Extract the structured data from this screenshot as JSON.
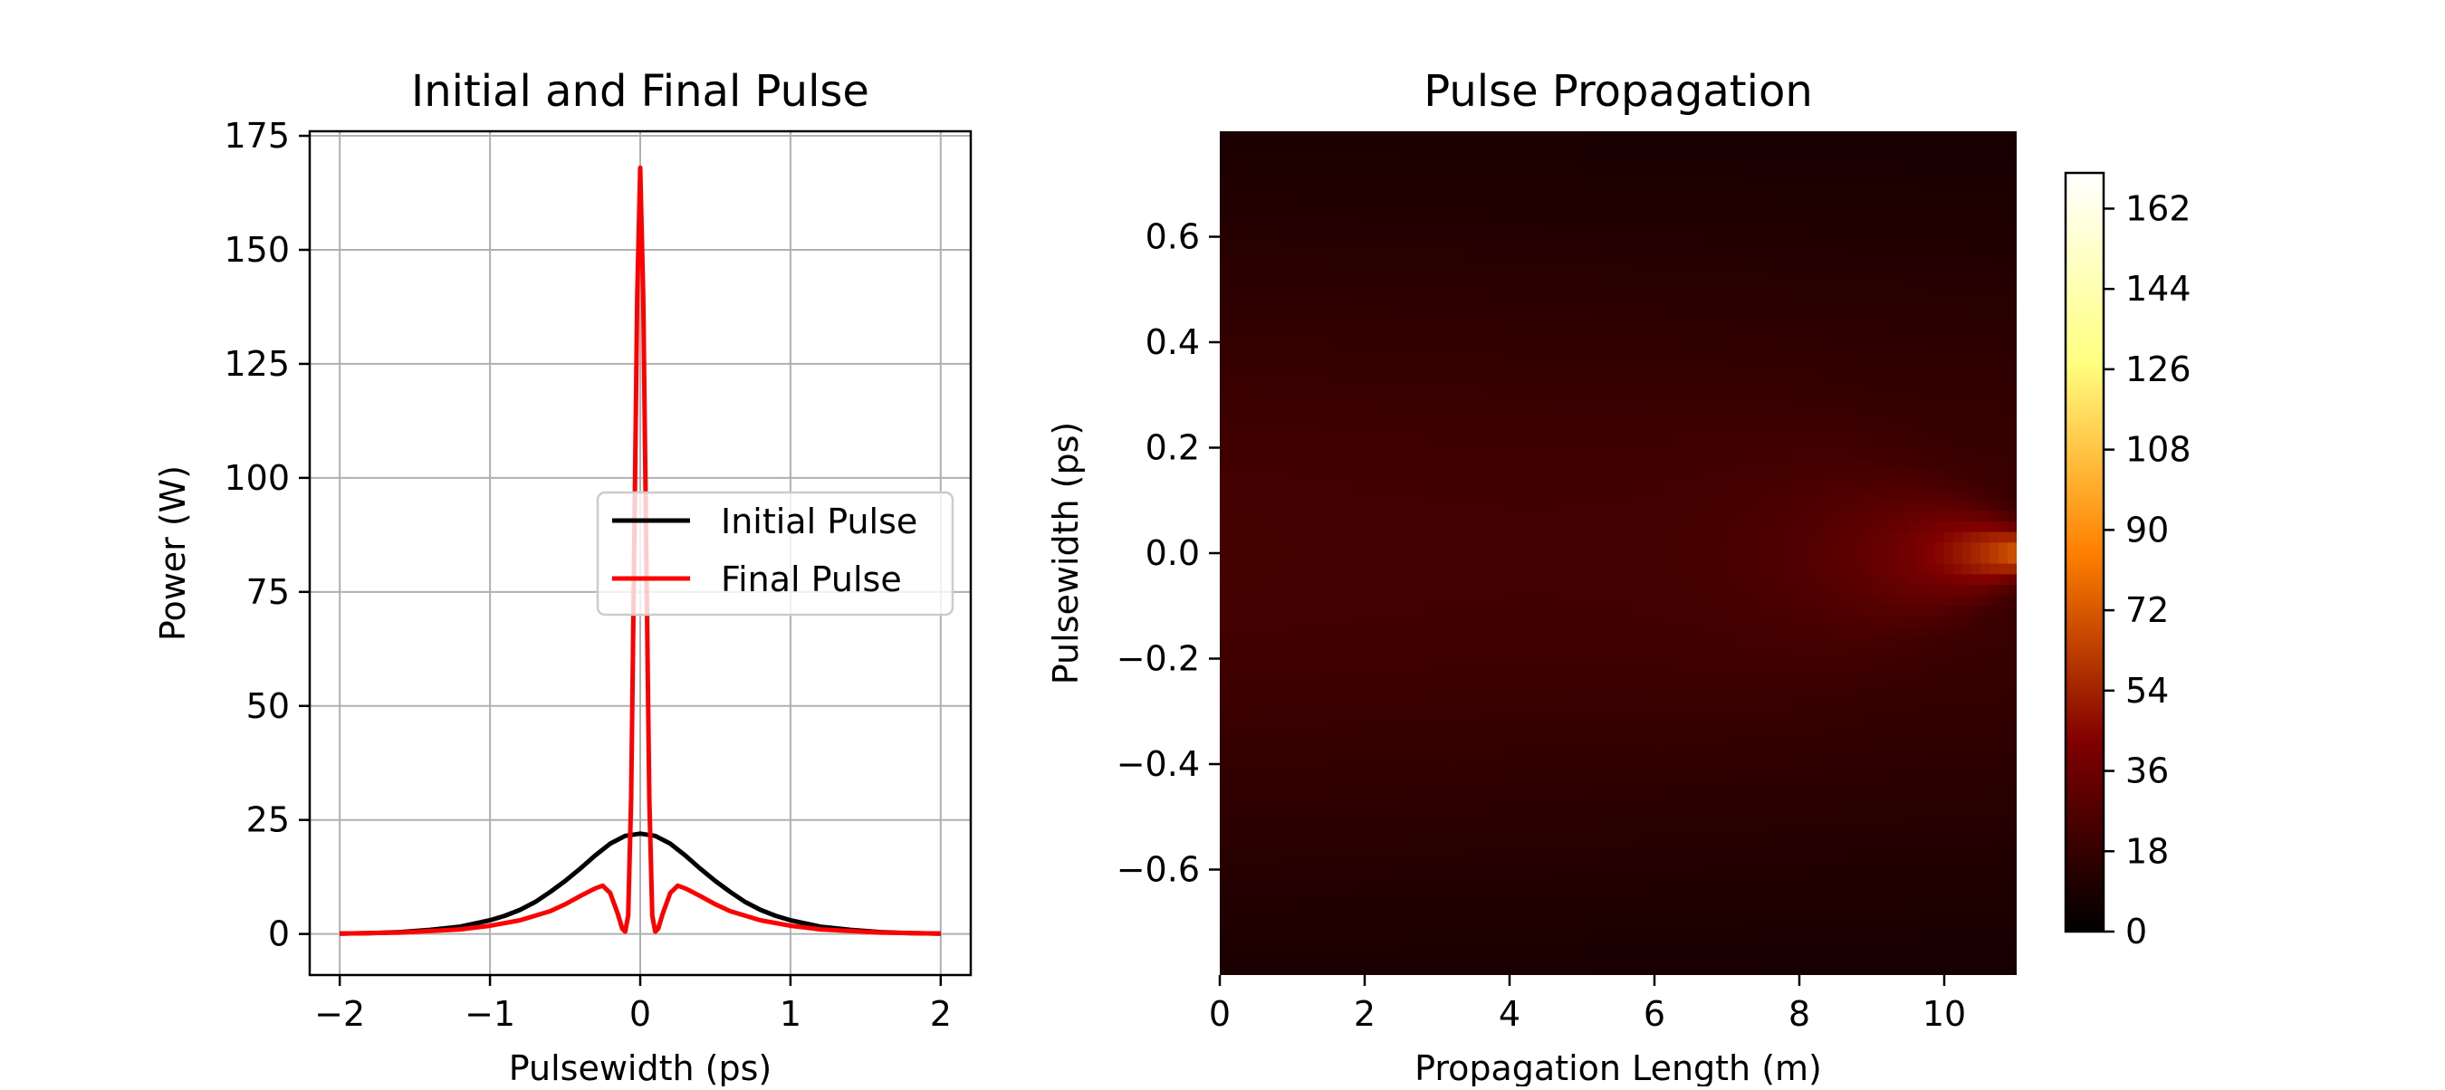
{
  "chart_data": [
    {
      "type": "line",
      "title": "Initial and Final Pulse",
      "xlabel": "Pulsewidth (ps)",
      "ylabel": "Power (W)",
      "xlim": [
        -2.2,
        2.2
      ],
      "ylim": [
        -9,
        176
      ],
      "x_ticks": [
        -2,
        -1,
        0,
        1,
        2
      ],
      "x_tick_labels": [
        "−2",
        "−1",
        "0",
        "1",
        "2"
      ],
      "y_ticks": [
        0,
        25,
        50,
        75,
        100,
        125,
        150,
        175
      ],
      "y_tick_labels": [
        "0",
        "25",
        "50",
        "75",
        "100",
        "125",
        "150",
        "175"
      ],
      "grid": true,
      "legend_position": "center-right",
      "series": [
        {
          "name": "Initial Pulse",
          "color": "#000000",
          "x": [
            -2.0,
            -1.8,
            -1.6,
            -1.4,
            -1.2,
            -1.0,
            -0.9,
            -0.8,
            -0.7,
            -0.6,
            -0.5,
            -0.4,
            -0.3,
            -0.2,
            -0.1,
            0.0,
            0.1,
            0.2,
            0.3,
            0.4,
            0.5,
            0.6,
            0.7,
            0.8,
            0.9,
            1.0,
            1.2,
            1.4,
            1.6,
            1.8,
            2.0
          ],
          "values": [
            0.1,
            0.2,
            0.4,
            0.9,
            1.6,
            3.0,
            4.0,
            5.3,
            7.0,
            9.2,
            11.6,
            14.3,
            17.2,
            19.8,
            21.5,
            22.0,
            21.5,
            19.8,
            17.2,
            14.3,
            11.6,
            9.2,
            7.0,
            5.3,
            4.0,
            3.0,
            1.6,
            0.9,
            0.4,
            0.2,
            0.1
          ]
        },
        {
          "name": "Final Pulse",
          "color": "#ff0000",
          "x": [
            -2.0,
            -1.6,
            -1.2,
            -1.0,
            -0.8,
            -0.6,
            -0.5,
            -0.4,
            -0.3,
            -0.25,
            -0.2,
            -0.15,
            -0.12,
            -0.1,
            -0.08,
            -0.06,
            -0.04,
            -0.02,
            0.0,
            0.02,
            0.04,
            0.06,
            0.08,
            0.1,
            0.12,
            0.15,
            0.2,
            0.25,
            0.3,
            0.4,
            0.5,
            0.6,
            0.8,
            1.0,
            1.2,
            1.6,
            2.0
          ],
          "values": [
            0.1,
            0.3,
            1.0,
            1.8,
            3.0,
            5.0,
            6.5,
            8.3,
            10.0,
            10.6,
            9.0,
            4.5,
            1.2,
            0.5,
            4.0,
            30.0,
            85.0,
            140.0,
            168.0,
            140.0,
            85.0,
            30.0,
            4.0,
            0.5,
            1.2,
            4.5,
            9.0,
            10.6,
            10.0,
            8.3,
            6.5,
            5.0,
            3.0,
            1.8,
            1.0,
            0.3,
            0.1
          ]
        }
      ]
    },
    {
      "type": "heatmap",
      "title": "Pulse Propagation",
      "xlabel": "Propagation Length (m)",
      "ylabel": "Pulsewidth (ps)",
      "xlim": [
        0,
        11
      ],
      "ylim": [
        -0.8,
        0.8
      ],
      "x_ticks": [
        0,
        2,
        4,
        6,
        8,
        10
      ],
      "x_tick_labels": [
        "0",
        "2",
        "4",
        "6",
        "8",
        "10"
      ],
      "y_ticks": [
        -0.6,
        -0.4,
        -0.2,
        0.0,
        0.2,
        0.4,
        0.6
      ],
      "y_tick_labels": [
        "−0.6",
        "−0.4",
        "−0.2",
        "0.0",
        "0.2",
        "0.4",
        "0.6"
      ],
      "colormap": "afmhot",
      "colorbar": {
        "min": 0,
        "max": 170,
        "ticks": [
          0,
          18,
          36,
          54,
          72,
          90,
          108,
          126,
          144,
          162
        ],
        "tick_labels": [
          "0",
          "18",
          "36",
          "54",
          "72",
          "90",
          "108",
          "126",
          "144",
          "162"
        ]
      }
    }
  ]
}
